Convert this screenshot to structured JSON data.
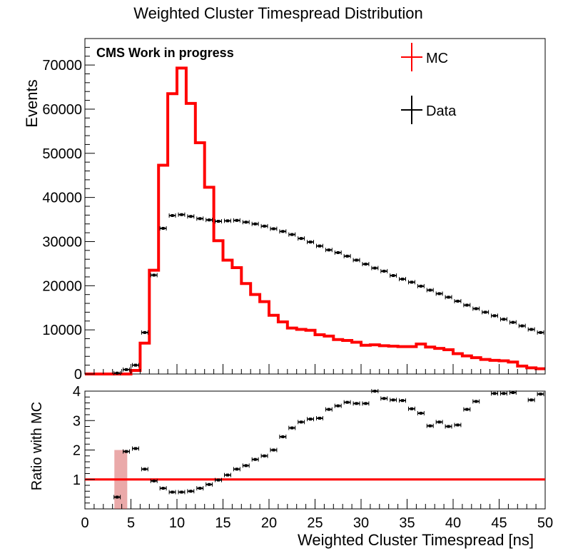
{
  "chart_data": [
    {
      "type": "line",
      "title": "Weighted Cluster Timespread Distribution",
      "annotation": "CMS Work in progress",
      "ylabel": "Events",
      "xlim": [
        0,
        50
      ],
      "ylim": [
        0,
        76000
      ],
      "legend_position": "top-right",
      "legend": [
        "MC",
        "Data"
      ],
      "x_ticks": [
        "0",
        "5",
        "10",
        "15",
        "20",
        "25",
        "30",
        "35",
        "40",
        "45",
        "50"
      ],
      "y_ticks": [
        "0",
        "10000",
        "20000",
        "30000",
        "40000",
        "50000",
        "60000",
        "70000"
      ],
      "bin_width": 1,
      "x": [
        0.5,
        1.5,
        2.5,
        3.5,
        4.5,
        5.5,
        6.5,
        7.5,
        8.5,
        9.5,
        10.5,
        11.5,
        12.5,
        13.5,
        14.5,
        15.5,
        16.5,
        17.5,
        18.5,
        19.5,
        20.5,
        21.5,
        22.5,
        23.5,
        24.5,
        25.5,
        26.5,
        27.5,
        28.5,
        29.5,
        30.5,
        31.5,
        32.5,
        33.5,
        34.5,
        35.5,
        36.5,
        37.5,
        38.5,
        39.5,
        40.5,
        41.5,
        42.5,
        43.5,
        44.5,
        45.5,
        46.5,
        47.5,
        48.5,
        49.5
      ],
      "series": [
        {
          "name": "MC",
          "color": "#ff0000",
          "style": "step",
          "values": [
            0,
            0,
            0,
            0,
            0,
            800,
            7000,
            23500,
            47300,
            63500,
            69300,
            61300,
            52400,
            42300,
            30200,
            25800,
            24100,
            20500,
            18000,
            16400,
            13300,
            11800,
            10400,
            10100,
            9900,
            8900,
            8600,
            7800,
            7600,
            7200,
            6500,
            6600,
            6400,
            6300,
            6200,
            6200,
            6800,
            6100,
            5800,
            5500,
            4600,
            4100,
            3700,
            3300,
            3100,
            3000,
            2700,
            1800,
            1400,
            1200
          ]
        },
        {
          "name": "Data",
          "color": "#000000",
          "style": "points",
          "values": [
            0,
            0,
            0,
            200,
            1000,
            2000,
            9400,
            22400,
            33000,
            35900,
            36100,
            35700,
            35200,
            34900,
            34600,
            34700,
            34800,
            34400,
            34000,
            33500,
            32900,
            32300,
            31600,
            30700,
            29900,
            29000,
            28100,
            27500,
            26700,
            25800,
            24900,
            24000,
            23300,
            22300,
            21500,
            20800,
            19900,
            19000,
            18200,
            17400,
            16500,
            15600,
            14800,
            14000,
            13200,
            12400,
            11700,
            10900,
            10100,
            9400
          ]
        }
      ]
    },
    {
      "type": "line",
      "ylabel": "Ratio with MC",
      "xlabel": "Weighted Cluster Timespread [ns]",
      "xlim": [
        0,
        50
      ],
      "ylim": [
        0,
        4
      ],
      "x_ticks": [
        "0",
        "5",
        "10",
        "15",
        "20",
        "25",
        "30",
        "35",
        "40",
        "45",
        "50"
      ],
      "y_ticks": [
        "1",
        "2",
        "3",
        "4"
      ],
      "reference_line": 1,
      "x": [
        3.5,
        4.5,
        5.5,
        6.5,
        7.5,
        8.5,
        9.5,
        10.5,
        11.5,
        12.5,
        13.5,
        14.5,
        15.5,
        16.5,
        17.5,
        18.5,
        19.5,
        20.5,
        21.5,
        22.5,
        23.5,
        24.5,
        25.5,
        26.5,
        27.5,
        28.5,
        29.5,
        30.5,
        31.5,
        32.5,
        33.5,
        34.5,
        35.5,
        36.5,
        37.5,
        38.5,
        39.5,
        40.5,
        41.5,
        42.5,
        44.5,
        45.5,
        46.5,
        48.5,
        49.5
      ],
      "series": [
        {
          "name": "Data",
          "color": "#000000",
          "style": "points",
          "values": [
            0.4,
            1.95,
            2.05,
            1.35,
            0.95,
            0.7,
            0.57,
            0.57,
            0.6,
            0.7,
            0.83,
            0.98,
            1.15,
            1.35,
            1.47,
            1.68,
            1.8,
            2.0,
            2.45,
            2.75,
            2.95,
            3.05,
            3.08,
            3.38,
            3.5,
            3.62,
            3.58,
            3.58,
            4.0,
            3.75,
            3.7,
            3.68,
            3.4,
            3.25,
            2.82,
            2.95,
            2.8,
            2.85,
            3.38,
            3.65,
            3.92,
            3.92,
            3.95,
            3.7,
            3.9
          ]
        }
      ]
    }
  ]
}
